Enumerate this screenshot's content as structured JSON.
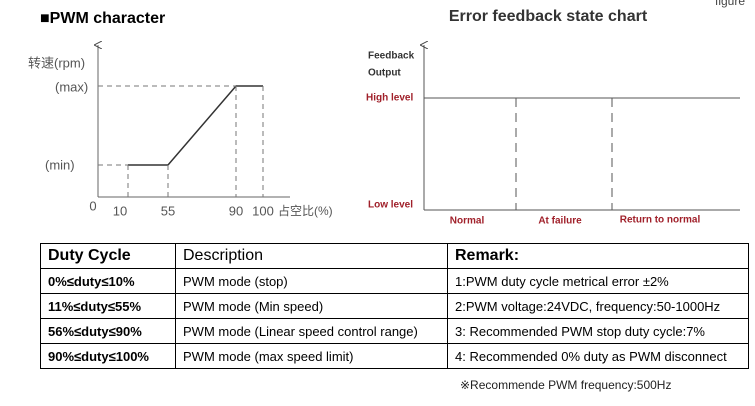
{
  "header": {
    "left_title": "■PWM character",
    "right_title": "Error feedback state chart",
    "corner": "figure"
  },
  "pwm_chart": {
    "y_label": "转速(rpm)",
    "y_max": "(max)",
    "y_min": "(min)",
    "x_ticks": [
      "0",
      "10",
      "55",
      "90",
      "100"
    ],
    "x_label": "占空比(%)"
  },
  "feedback_chart": {
    "y_label_1": "Feedback",
    "y_label_2": "Output",
    "high": "High level",
    "low": "Low level",
    "states": [
      "Normal",
      "At failure",
      "Return to normal"
    ]
  },
  "table": {
    "header": [
      "Duty Cycle",
      "Description",
      "Remark:"
    ],
    "rows": [
      [
        "0%≤duty≤10%",
        "PWM mode (stop)",
        "1:PWM duty cycle metrical error ±2%"
      ],
      [
        "11%≤duty≤55%",
        "PWM mode (Min speed)",
        "2:PWM voltage:24VDC, frequency:50-1000Hz"
      ],
      [
        "56%≤duty≤90%",
        "PWM mode (Linear speed control range)",
        "3: Recommended PWM stop duty cycle:7%"
      ],
      [
        "90%≤duty≤100%",
        "PWM mode (max speed limit)",
        "4: Recommended 0% duty as PWM disconnect"
      ]
    ]
  },
  "note": "※Recommende PWM frequency:500Hz"
}
